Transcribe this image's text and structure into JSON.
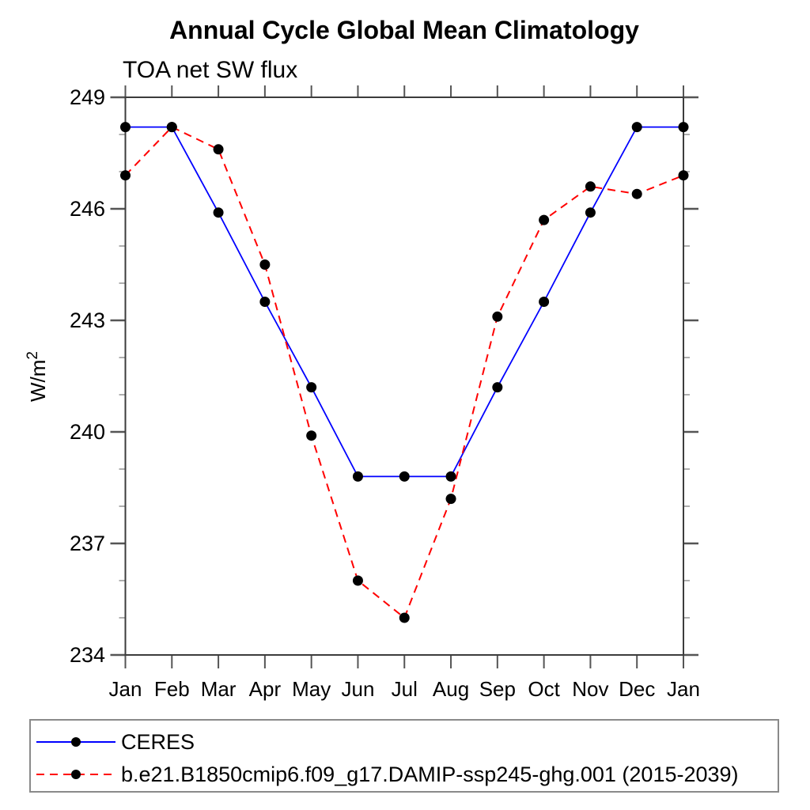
{
  "title": "Annual Cycle Global Mean Climatology",
  "subtitle": "TOA net SW flux",
  "ylabel": {
    "base": "W/m",
    "sup": "2"
  },
  "chart_data": {
    "type": "line",
    "categories": [
      "Jan",
      "Feb",
      "Mar",
      "Apr",
      "May",
      "Jun",
      "Jul",
      "Aug",
      "Sep",
      "Oct",
      "Nov",
      "Dec",
      "Jan"
    ],
    "series": [
      {
        "name": "CERES",
        "color": "#0000ff",
        "line_style": "solid",
        "marker": "filled-circle",
        "marker_color": "#000000",
        "values": [
          248.2,
          248.2,
          245.9,
          243.5,
          241.2,
          238.8,
          238.8,
          238.8,
          241.2,
          243.5,
          245.9,
          248.2,
          248.2
        ]
      },
      {
        "name": "b.e21.B1850cmip6.f09_g17.DAMIP-ssp245-ghg.001 (2015-2039)",
        "color": "#ff0000",
        "line_style": "dashed",
        "marker": "filled-circle",
        "marker_color": "#000000",
        "values": [
          246.9,
          248.2,
          247.6,
          244.5,
          239.9,
          236.0,
          235.0,
          238.2,
          243.1,
          245.7,
          246.6,
          246.4,
          246.9
        ]
      }
    ],
    "ylim": [
      234,
      249
    ],
    "yticks_major": [
      234,
      237,
      240,
      243,
      246,
      249
    ],
    "y_minor_step": 1,
    "grid": false,
    "legend_position": "bottom-box"
  },
  "colors": {
    "background": "#ffffff",
    "text": "#000000",
    "axis_frame": "#3c3c3c",
    "major_tick": "#555555",
    "minor_tick": "#9a9a9a",
    "ceres_line": "#0000ff",
    "model_line": "#ff0000",
    "marker": "#000000",
    "legend_border": "#8a8a8a"
  }
}
